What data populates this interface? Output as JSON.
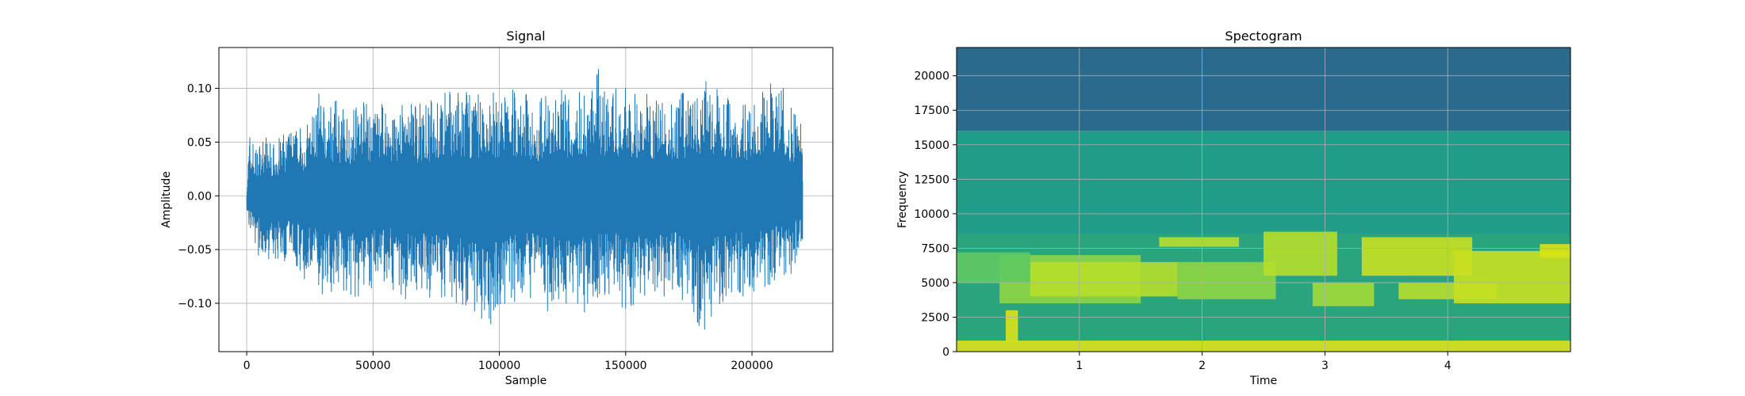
{
  "chart_data": [
    {
      "type": "line",
      "title": "Signal",
      "xlabel": "Sample",
      "ylabel": "Amplitude",
      "xlim": [
        -11000,
        232000
      ],
      "ylim": [
        -0.145,
        0.138
      ],
      "xticks": [
        0,
        50000,
        100000,
        150000,
        200000
      ],
      "xtick_labels": [
        "0",
        "50000",
        "100000",
        "150000",
        "200000"
      ],
      "yticks": [
        -0.1,
        -0.05,
        0.0,
        0.05,
        0.1
      ],
      "ytick_labels": [
        "−0.10",
        "−0.05",
        "0.00",
        "0.05",
        "0.10"
      ],
      "grid": true,
      "color": "#1f77b4",
      "series": [
        {
          "x": [
            0,
            1000,
            2500,
            4000,
            6000,
            8000,
            10000,
            12000,
            15000,
            20000,
            25000,
            28000,
            30000,
            35000,
            40000,
            45000,
            50000,
            55000,
            60000,
            65000,
            70000,
            75000,
            80000,
            85000,
            88000,
            90000,
            93000,
            95000,
            100000,
            105000,
            110000,
            115000,
            120000,
            125000,
            130000,
            135000,
            139000,
            140000,
            145000,
            150000,
            155000,
            160000,
            165000,
            170000,
            175000,
            180000,
            185000,
            190000,
            195000,
            200000,
            205000,
            210000,
            215000,
            220000
          ],
          "upper": [
            0.0,
            0.062,
            0.055,
            0.045,
            0.058,
            0.058,
            0.05,
            0.052,
            0.06,
            0.065,
            0.07,
            0.1,
            0.085,
            0.09,
            0.08,
            0.095,
            0.08,
            0.09,
            0.085,
            0.09,
            0.085,
            0.095,
            0.1,
            0.098,
            0.1,
            0.098,
            0.1,
            0.095,
            0.1,
            0.105,
            0.1,
            0.09,
            0.095,
            0.1,
            0.098,
            0.105,
            0.125,
            0.11,
            0.1,
            0.105,
            0.095,
            0.1,
            0.09,
            0.095,
            0.1,
            0.105,
            0.11,
            0.1,
            0.09,
            0.098,
            0.1,
            0.11,
            0.09,
            0.08
          ],
          "lower": [
            -0.015,
            -0.03,
            -0.045,
            -0.055,
            -0.058,
            -0.06,
            -0.06,
            -0.065,
            -0.065,
            -0.07,
            -0.085,
            -0.085,
            -0.095,
            -0.09,
            -0.095,
            -0.1,
            -0.09,
            -0.08,
            -0.095,
            -0.1,
            -0.095,
            -0.1,
            -0.1,
            -0.11,
            -0.12,
            -0.11,
            -0.125,
            -0.13,
            -0.11,
            -0.105,
            -0.095,
            -0.1,
            -0.11,
            -0.1,
            -0.105,
            -0.11,
            -0.1,
            -0.1,
            -0.095,
            -0.11,
            -0.105,
            -0.1,
            -0.1,
            -0.095,
            -0.1,
            -0.13,
            -0.11,
            -0.1,
            -0.095,
            -0.09,
            -0.085,
            -0.08,
            -0.08,
            -0.045
          ]
        }
      ]
    },
    {
      "type": "heatmap",
      "title": "Spectogram",
      "xlabel": "Time",
      "ylabel": "Frequency",
      "xlim": [
        0,
        5.0
      ],
      "ylim": [
        0,
        22050
      ],
      "xticks": [
        1,
        2,
        3,
        4
      ],
      "xtick_labels": [
        "1",
        "2",
        "3",
        "4"
      ],
      "yticks": [
        0,
        2500,
        5000,
        7500,
        10000,
        12500,
        15000,
        17500,
        20000
      ],
      "ytick_labels": [
        "0",
        "2500",
        "5000",
        "7500",
        "10000",
        "12500",
        "15000",
        "17500",
        "20000"
      ],
      "grid": true,
      "colormap": "viridis",
      "bands": [
        {
          "from": 16000,
          "to": 22050,
          "color": "#2a6a8d"
        },
        {
          "from": 8500,
          "to": 16000,
          "color": "#1f9d89"
        },
        {
          "from": 0,
          "to": 8500,
          "color": "#2aa37f"
        }
      ],
      "patches": [
        {
          "t0": 0.35,
          "t1": 1.5,
          "f0": 3500,
          "f1": 7000,
          "color": "#8ed644"
        },
        {
          "t0": 0.6,
          "t1": 1.8,
          "f0": 4000,
          "f1": 6500,
          "color": "#b5de2b"
        },
        {
          "t0": 1.65,
          "t1": 2.3,
          "f0": 7600,
          "f1": 8300,
          "color": "#b5de2b"
        },
        {
          "t0": 1.8,
          "t1": 2.6,
          "f0": 3800,
          "f1": 6500,
          "color": "#8ed644"
        },
        {
          "t0": 2.5,
          "t1": 3.1,
          "f0": 5500,
          "f1": 8700,
          "color": "#b5de2b"
        },
        {
          "t0": 2.9,
          "t1": 3.4,
          "f0": 3300,
          "f1": 5000,
          "color": "#a2d93a"
        },
        {
          "t0": 3.3,
          "t1": 4.2,
          "f0": 5500,
          "f1": 8300,
          "color": "#c8e020"
        },
        {
          "t0": 3.6,
          "t1": 4.4,
          "f0": 3800,
          "f1": 5000,
          "color": "#b5de2b"
        },
        {
          "t0": 4.05,
          "t1": 5.0,
          "f0": 3500,
          "f1": 7300,
          "color": "#c8e020"
        },
        {
          "t0": 4.75,
          "t1": 5.0,
          "f0": 6800,
          "f1": 7800,
          "color": "#d8e219"
        },
        {
          "t0": 0.0,
          "t1": 5.0,
          "f0": 0,
          "f1": 800,
          "color": "#d8e219"
        },
        {
          "t0": 0.4,
          "t1": 0.5,
          "f0": 700,
          "f1": 3000,
          "color": "#d8e219"
        },
        {
          "t0": 0.0,
          "t1": 0.6,
          "f0": 5000,
          "f1": 7200,
          "color": "#5ec962"
        }
      ]
    }
  ]
}
